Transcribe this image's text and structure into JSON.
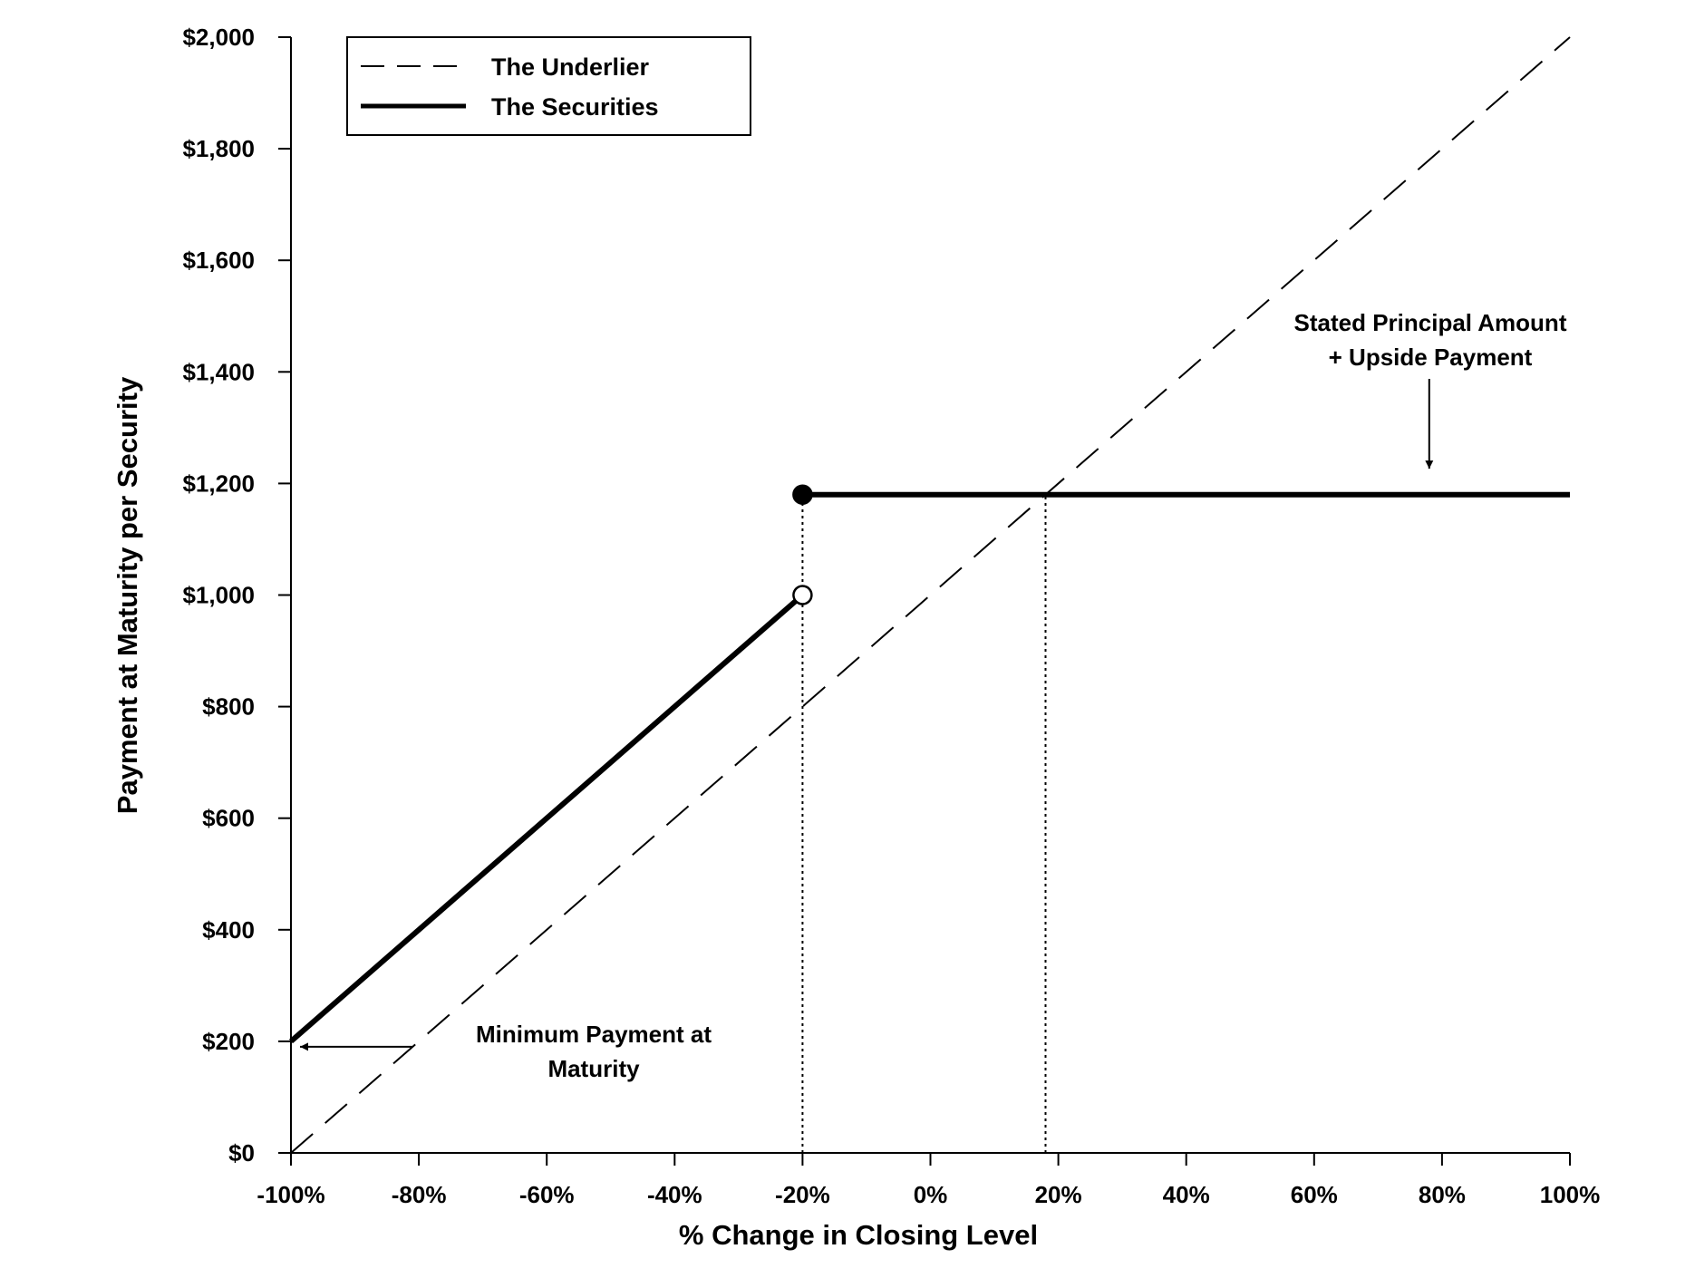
{
  "chart_data": {
    "type": "line",
    "title": "",
    "xlabel": "% Change in Closing Level",
    "ylabel": "Payment at Maturity per Security",
    "xlim": [
      -100,
      100
    ],
    "ylim": [
      0,
      2000
    ],
    "x_ticks": [
      "-100%",
      "-80%",
      "-60%",
      "-40%",
      "-20%",
      "0%",
      "20%",
      "40%",
      "60%",
      "80%",
      "100%"
    ],
    "y_ticks": [
      "$0",
      "$200",
      "$400",
      "$600",
      "$800",
      "$1,000",
      "$1,200",
      "$1,400",
      "$1,600",
      "$1,800",
      "$2,000"
    ],
    "x_tick_values": [
      -100,
      -80,
      -60,
      -40,
      -20,
      0,
      20,
      40,
      60,
      80,
      100
    ],
    "y_tick_values": [
      0,
      200,
      400,
      600,
      800,
      1000,
      1200,
      1400,
      1600,
      1800,
      2000
    ],
    "grid": false,
    "legend": {
      "position": "top-left",
      "entries": [
        {
          "label": "The Underlier",
          "style": "dashed"
        },
        {
          "label": "The Securities",
          "style": "solid-thick"
        }
      ]
    },
    "series": [
      {
        "name": "The Underlier",
        "style": "dashed",
        "x": [
          -100,
          100
        ],
        "y": [
          0,
          2000
        ]
      },
      {
        "name": "The Securities",
        "style": "solid-thick",
        "segments": [
          {
            "x": [
              -100,
              -20
            ],
            "y": [
              200,
              1000
            ]
          },
          {
            "x": [
              -20,
              100
            ],
            "y": [
              1180,
              1180
            ]
          }
        ],
        "markers": [
          {
            "x": -20,
            "y": 1180,
            "fill": "filled"
          },
          {
            "x": -20,
            "y": 1000,
            "fill": "open"
          }
        ]
      }
    ],
    "reference_lines": [
      {
        "style": "dotted",
        "x": -20,
        "y_from": 0,
        "y_to": 1180
      },
      {
        "style": "dotted",
        "x": 18,
        "y_from": 0,
        "y_to": 1180
      }
    ],
    "annotations": [
      {
        "lines": [
          "Stated Principal Amount",
          "+ Upside Payment"
        ],
        "points_to": {
          "x": 78,
          "y": 1220
        },
        "arrow": "down"
      },
      {
        "lines": [
          "Minimum Payment at",
          "Maturity"
        ],
        "points_to": {
          "x": -100,
          "y": 200
        },
        "arrow": "left"
      }
    ],
    "colors": {
      "line": "#000000",
      "background": "#ffffff"
    }
  }
}
